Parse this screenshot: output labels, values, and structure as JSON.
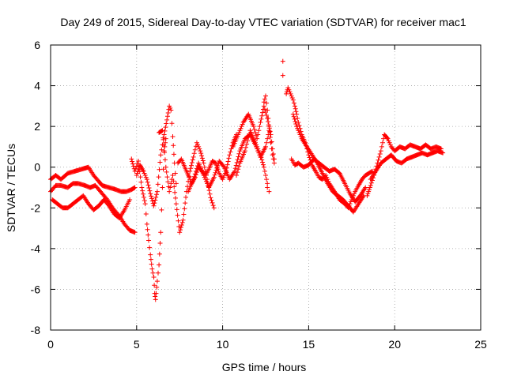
{
  "chart_data": {
    "type": "scatter",
    "title": "Day 249 of 2015, Sidereal Day-to-day VTEC variation (SDTVAR) for receiver mac1",
    "xlabel": "GPS time / hours",
    "ylabel": "SDTVAR / TECUs",
    "xlim": [
      0,
      25
    ],
    "ylim": [
      -8,
      6
    ],
    "xticks": [
      0,
      5,
      10,
      15,
      20,
      25
    ],
    "yticks": [
      -8,
      -6,
      -4,
      -2,
      0,
      2,
      4,
      6
    ],
    "grid": true,
    "marker": "+",
    "color": "#ff0000",
    "series": [
      {
        "name": "SDTVAR",
        "tracks": [
          {
            "x": [
              0.0,
              0.3,
              0.6,
              1.0,
              1.4,
              1.8,
              2.2,
              2.5,
              2.8,
              3.0,
              3.4,
              3.8,
              4.1,
              4.4,
              4.7,
              4.9
            ],
            "y": [
              -0.6,
              -0.4,
              -0.6,
              -0.3,
              -0.2,
              -0.1,
              0.0,
              -0.4,
              -0.7,
              -0.9,
              -1.0,
              -1.1,
              -1.2,
              -1.2,
              -1.1,
              -1.0
            ]
          },
          {
            "x": [
              0.0,
              0.3,
              0.6,
              1.0,
              1.3,
              1.6,
              2.0,
              2.3,
              2.6,
              3.0,
              3.3,
              3.6,
              4.0,
              4.3,
              4.6,
              4.9
            ],
            "y": [
              -1.2,
              -0.9,
              -0.9,
              -1.0,
              -0.8,
              -0.8,
              -0.9,
              -1.0,
              -0.9,
              -1.3,
              -1.6,
              -2.0,
              -2.4,
              -2.8,
              -3.1,
              -3.2
            ]
          },
          {
            "x": [
              0.1,
              0.4,
              0.7,
              1.0,
              1.3,
              1.6,
              1.9,
              2.2,
              2.5,
              2.8,
              3.1,
              3.4,
              3.7,
              4.0,
              4.3,
              4.6
            ],
            "y": [
              -1.6,
              -1.8,
              -2.0,
              -2.0,
              -1.8,
              -1.6,
              -1.4,
              -1.8,
              -2.1,
              -1.9,
              -1.6,
              -1.9,
              -2.3,
              -2.5,
              -2.1,
              -1.6
            ]
          },
          {
            "x": [
              4.7,
              4.9,
              5.1,
              5.3,
              5.5,
              5.6,
              5.7,
              5.8,
              5.9,
              6.0,
              6.05,
              6.1,
              6.2,
              6.3,
              6.4,
              6.5,
              6.6,
              6.7
            ],
            "y": [
              0.4,
              -0.2,
              0.3,
              -1.0,
              -1.8,
              -2.8,
              -3.6,
              -4.3,
              -5.0,
              -5.4,
              -6.2,
              -6.5,
              -5.6,
              -4.8,
              -3.2,
              -1.0,
              0.8,
              1.4
            ]
          },
          {
            "x": [
              5.0,
              5.2,
              5.4,
              5.6,
              5.8,
              6.0,
              6.2,
              6.4,
              6.6,
              6.8,
              6.9,
              7.0,
              7.1,
              7.2,
              7.3
            ],
            "y": [
              -0.4,
              0.1,
              -0.2,
              -0.6,
              -1.3,
              -1.9,
              -1.2,
              0.6,
              1.6,
              2.5,
              3.0,
              2.8,
              1.5,
              0.2,
              -0.8
            ]
          },
          {
            "x": [
              6.3,
              6.5,
              6.7,
              6.9,
              7.1,
              7.3,
              7.5,
              7.7,
              7.9,
              8.1,
              8.3,
              8.5,
              8.7,
              8.9,
              9.1,
              9.3,
              9.5
            ],
            "y": [
              1.7,
              1.8,
              0.0,
              -1.2,
              -0.4,
              -1.8,
              -3.2,
              -2.6,
              -1.2,
              -0.2,
              0.5,
              1.2,
              0.8,
              0.2,
              -0.6,
              -1.5,
              -2.0
            ]
          },
          {
            "x": [
              7.4,
              7.6,
              7.8,
              8.0,
              8.2,
              8.4,
              8.6,
              8.8,
              9.0,
              9.2,
              9.4,
              9.6,
              9.8,
              10.0,
              10.2,
              10.4,
              10.6,
              10.8
            ],
            "y": [
              0.2,
              0.4,
              0.0,
              -0.4,
              -0.8,
              -0.5,
              0.0,
              -0.2,
              -0.4,
              -0.1,
              0.3,
              0.2,
              -0.3,
              -0.6,
              -0.2,
              0.6,
              1.2,
              1.6
            ]
          },
          {
            "x": [
              8.0,
              8.3,
              8.6,
              8.9,
              9.2,
              9.5,
              9.8,
              10.1,
              10.4,
              10.7,
              11.0,
              11.3,
              11.6,
              11.9,
              12.2,
              12.5,
              12.7
            ],
            "y": [
              -1.2,
              -0.6,
              0.2,
              -0.4,
              -1.0,
              -0.5,
              0.3,
              0.0,
              -0.6,
              -0.2,
              0.8,
              1.4,
              1.6,
              1.1,
              0.5,
              1.0,
              1.8
            ]
          },
          {
            "x": [
              10.6,
              10.9,
              11.2,
              11.5,
              11.8,
              12.0,
              12.2,
              12.4,
              12.6,
              12.8,
              12.9,
              13.0
            ],
            "y": [
              1.0,
              1.6,
              2.2,
              2.6,
              2.0,
              1.4,
              2.2,
              3.0,
              2.4,
              1.6,
              0.9,
              0.4
            ]
          },
          {
            "x": [
              10.8,
              11.0,
              11.3,
              11.6,
              11.9,
              12.2,
              12.4,
              12.6
            ],
            "y": [
              -0.4,
              0.2,
              0.8,
              1.8,
              1.2,
              0.6,
              0.0,
              -0.8
            ]
          },
          {
            "x": [
              12.4,
              12.5,
              12.6,
              12.7,
              12.8,
              12.9,
              13.0
            ],
            "y": [
              3.2,
              3.5,
              2.8,
              2.0,
              1.2,
              0.6,
              0.2
            ]
          },
          {
            "x": [
              13.7,
              13.8,
              13.9,
              14.0,
              14.1,
              14.2,
              14.3,
              14.4,
              14.6,
              14.8,
              15.0,
              15.2,
              15.4,
              15.6,
              15.8,
              16.0,
              16.2,
              16.5,
              16.8,
              17.1,
              17.3,
              17.5,
              17.7,
              17.9,
              18.1,
              18.3,
              18.5,
              18.7
            ],
            "y": [
              3.6,
              3.9,
              3.7,
              3.5,
              3.3,
              3.0,
              2.6,
              2.2,
              1.6,
              1.2,
              0.6,
              0.1,
              -0.2,
              -0.5,
              -0.6,
              -0.4,
              -0.8,
              -1.2,
              -1.6,
              -1.8,
              -2.0,
              -1.6,
              -1.2,
              -0.9,
              -0.6,
              -0.4,
              -0.3,
              -0.2
            ]
          },
          {
            "x": [
              14.0,
              14.2,
              14.4,
              14.7,
              15.0,
              15.3,
              15.6,
              15.9,
              16.2,
              16.5,
              16.8,
              17.1,
              17.4,
              17.7,
              18.0,
              18.3
            ],
            "y": [
              0.4,
              0.1,
              0.2,
              0.0,
              0.1,
              0.4,
              0.2,
              0.0,
              -0.2,
              -0.1,
              -0.3,
              -0.8,
              -1.3,
              -1.7,
              -1.4,
              -1.0
            ]
          },
          {
            "x": [
              14.1,
              14.3,
              14.6,
              14.9,
              15.2,
              15.5,
              15.8,
              16.1,
              16.4,
              16.7,
              17.0,
              17.3,
              17.6,
              17.9,
              18.2
            ],
            "y": [
              2.6,
              2.0,
              1.4,
              1.0,
              0.6,
              0.2,
              -0.3,
              -0.8,
              -1.2,
              -1.4,
              -1.6,
              -1.9,
              -2.2,
              -1.8,
              -1.4
            ]
          },
          {
            "x": [
              18.4,
              18.6,
              18.8,
              19.0,
              19.2,
              19.4,
              19.6,
              19.8,
              20.0,
              20.3,
              20.6,
              20.9,
              21.2,
              21.5,
              21.8,
              22.1,
              22.4,
              22.7
            ],
            "y": [
              -1.4,
              -0.9,
              -0.4,
              0.2,
              0.8,
              1.6,
              1.4,
              1.0,
              0.8,
              1.0,
              0.9,
              1.1,
              1.0,
              0.9,
              1.1,
              0.9,
              1.0,
              0.9
            ]
          },
          {
            "x": [
              18.6,
              18.9,
              19.2,
              19.5,
              19.8,
              20.1,
              20.4,
              20.7,
              21.0,
              21.3,
              21.6,
              21.9,
              22.2,
              22.5,
              22.8
            ],
            "y": [
              -0.6,
              -0.2,
              0.2,
              0.4,
              0.6,
              0.3,
              0.2,
              0.4,
              0.5,
              0.6,
              0.7,
              0.6,
              0.7,
              0.8,
              0.7
            ]
          }
        ],
        "outliers": {
          "x": [
            13.5,
            13.5,
            12.6,
            12.7
          ],
          "y": [
            5.2,
            4.5,
            -1.0,
            -1.2
          ]
        }
      }
    ]
  }
}
